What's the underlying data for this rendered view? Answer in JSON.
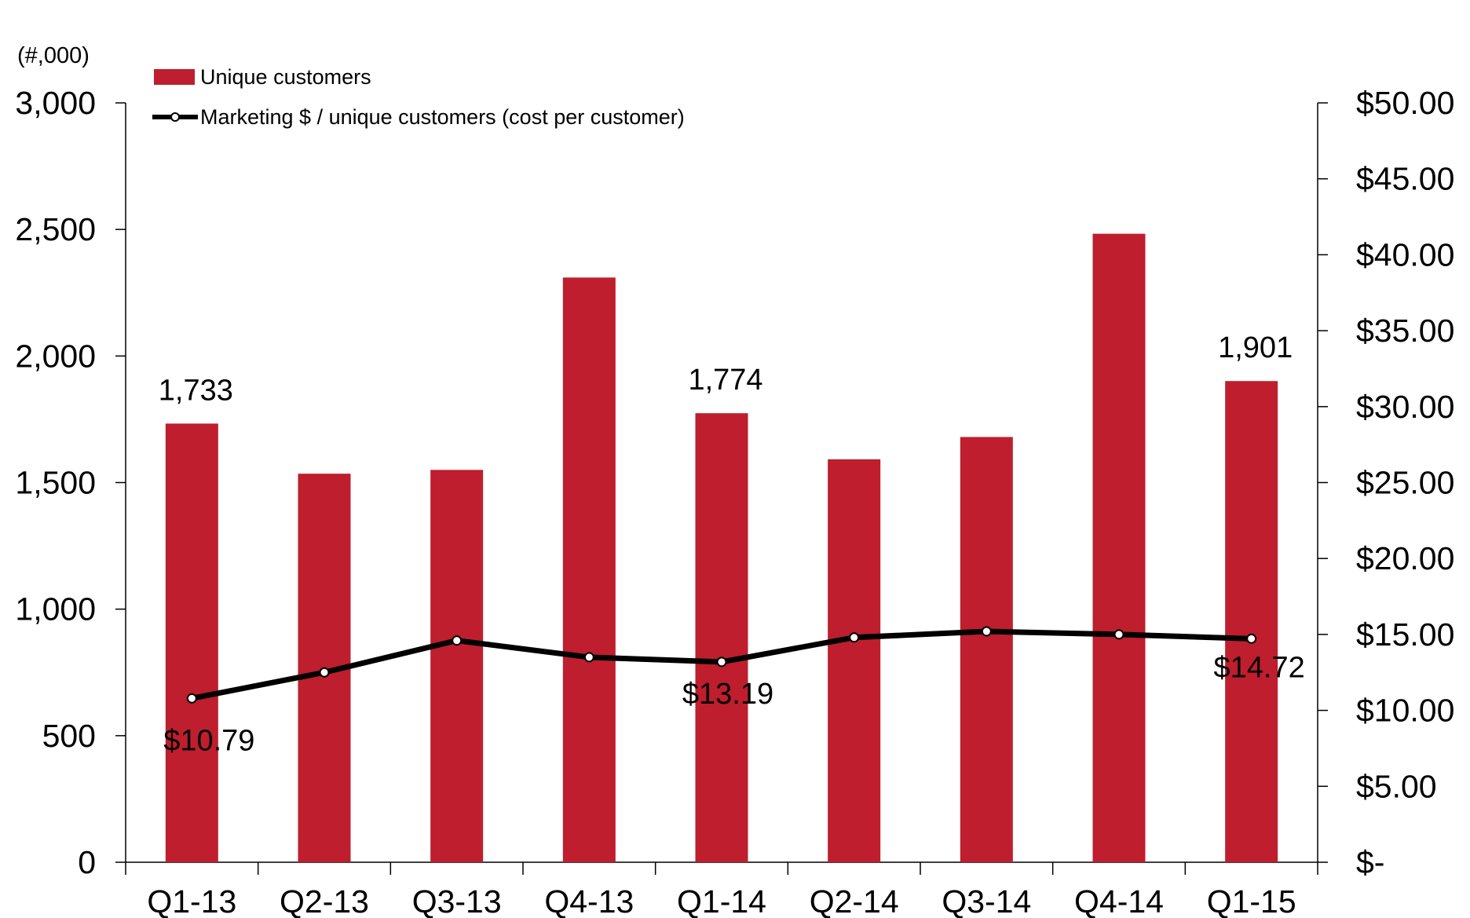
{
  "chart_data": {
    "type": "bar",
    "categories": [
      "Q1-13",
      "Q2-13",
      "Q3-13",
      "Q4-13",
      "Q1-14",
      "Q2-14",
      "Q3-14",
      "Q4-14",
      "Q1-15"
    ],
    "series": [
      {
        "name": "Unique customers",
        "kind": "bar",
        "axis": "left",
        "color": "#be1e2d",
        "values": [
          1733,
          1535,
          1550,
          2310,
          1774,
          1592,
          1680,
          2483,
          1901
        ],
        "labels": [
          "1,733",
          "",
          "",
          "",
          "1,774",
          "",
          "",
          "",
          "1,901"
        ]
      },
      {
        "name": "Marketing $ / unique customers (cost per customer)",
        "kind": "line",
        "axis": "right",
        "color": "#000000",
        "values": [
          10.79,
          12.5,
          14.6,
          13.5,
          13.19,
          14.8,
          15.2,
          15.0,
          14.72
        ],
        "labels": [
          "$10.79",
          "",
          "",
          "",
          "$13.19",
          "",
          "",
          "",
          "$14.72"
        ]
      }
    ],
    "y_left": {
      "unit_label": "(#,000)",
      "ylim": [
        0,
        3000
      ],
      "ticks": [
        0,
        500,
        1000,
        1500,
        2000,
        2500,
        3000
      ],
      "tick_labels": [
        "0",
        "500",
        "1,000",
        "1,500",
        "2,000",
        "2,500",
        "3,000"
      ]
    },
    "y_right": {
      "ylim": [
        0,
        50
      ],
      "ticks": [
        0,
        5,
        10,
        15,
        20,
        25,
        30,
        35,
        40,
        45,
        50
      ],
      "tick_labels": [
        "$-",
        "$5.00",
        "$10.00",
        "$15.00",
        "$20.00",
        "$25.00",
        "$30.00",
        "$35.00",
        "$40.00",
        "$45.00",
        "$50.00"
      ]
    },
    "legend": {
      "placement": "top-left",
      "items": [
        "Unique customers",
        "Marketing $ / unique customers (cost per customer)"
      ]
    },
    "grid": false
  }
}
